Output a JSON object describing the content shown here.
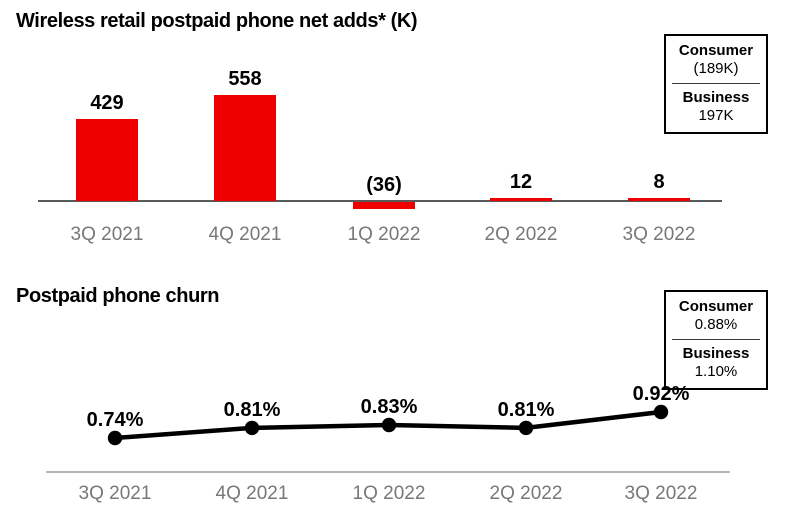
{
  "chart_data": [
    {
      "type": "bar",
      "title": "Wireless retail postpaid phone net adds* (K)",
      "categories": [
        "3Q 2021",
        "4Q 2021",
        "1Q 2022",
        "2Q 2022",
        "3Q 2022"
      ],
      "values": [
        429,
        558,
        -36,
        12,
        8
      ],
      "value_labels": [
        "429",
        "558",
        "(36)",
        "12",
        "8"
      ],
      "bar_color": "#ee0000",
      "value_label_color": "#000000",
      "axis_line_color": "#58595b",
      "tick_label_color": "#787878",
      "ylim": [
        -60,
        620
      ],
      "grid": false,
      "legend": {
        "position": "top-right",
        "items": [
          {
            "label": "Consumer",
            "value": "(189K)"
          },
          {
            "label": "Business",
            "value": "197K"
          }
        ]
      }
    },
    {
      "type": "line",
      "title": "Postpaid phone churn",
      "categories": [
        "3Q 2021",
        "4Q 2021",
        "1Q 2022",
        "2Q 2022",
        "3Q 2022"
      ],
      "values": [
        0.74,
        0.81,
        0.83,
        0.81,
        0.92
      ],
      "value_labels": [
        "0.74%",
        "0.81%",
        "0.83%",
        "0.81%",
        "0.92%"
      ],
      "line_color": "#000000",
      "marker": "circle",
      "value_label_color": "#000000",
      "axis_line_color": "#b5b5b5",
      "tick_label_color": "#787878",
      "ylim": [
        0.6,
        1.0
      ],
      "grid": false,
      "legend": {
        "position": "top-right",
        "items": [
          {
            "label": "Consumer",
            "value": "0.88%"
          },
          {
            "label": "Business",
            "value": "1.10%"
          }
        ]
      }
    }
  ]
}
